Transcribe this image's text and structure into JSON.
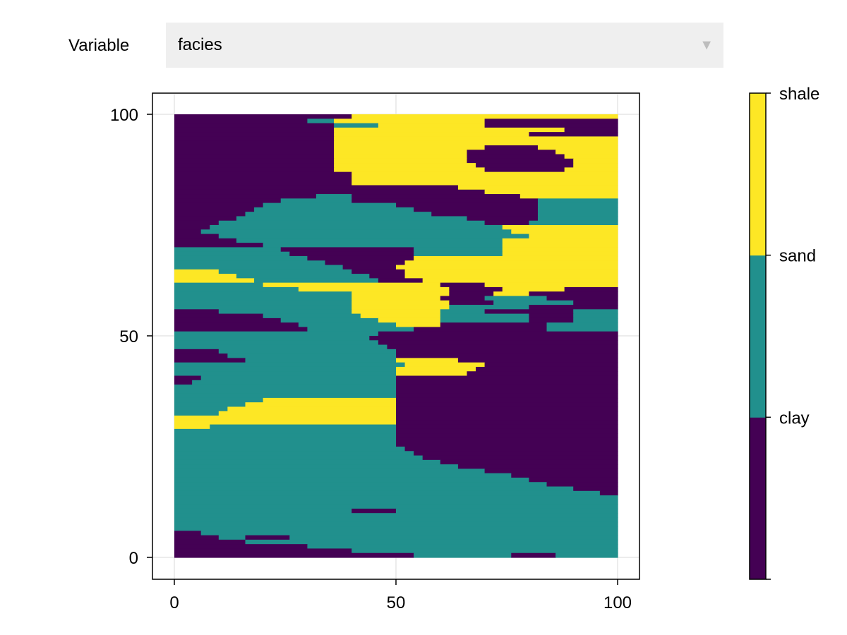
{
  "controls": {
    "variable_label": "Variable",
    "selected_variable": "facies"
  },
  "chart_data": {
    "type": "heatmap",
    "title": "",
    "xlabel": "",
    "ylabel": "",
    "xlim": [
      0,
      100
    ],
    "ylim": [
      0,
      100
    ],
    "x_ticks": [
      "0",
      "50",
      "100"
    ],
    "y_ticks": [
      "0",
      "50",
      "100"
    ],
    "grid": true,
    "categories": [
      "clay",
      "sand",
      "shale"
    ],
    "colors": [
      "#440154",
      "#21908d",
      "#fde725"
    ],
    "colorbar_labels": [
      "clay",
      "sand",
      "shale"
    ],
    "grid_size": [
      100,
      100
    ],
    "value_encoding": "rows listed from y=100 (top) to y=0 (bottom); each row is runs of [category_index, run_length] summing to 100 cells",
    "rows": [
      [
        [
          0,
          40
        ],
        [
          2,
          60
        ]
      ],
      [
        [
          0,
          30
        ],
        [
          1,
          6
        ],
        [
          2,
          34
        ],
        [
          0,
          30
        ]
      ],
      [
        [
          0,
          36
        ],
        [
          1,
          10
        ],
        [
          2,
          24
        ],
        [
          0,
          30
        ]
      ],
      [
        [
          0,
          36
        ],
        [
          2,
          52
        ],
        [
          0,
          12
        ]
      ],
      [
        [
          0,
          36
        ],
        [
          2,
          44
        ],
        [
          0,
          20
        ]
      ],
      [
        [
          0,
          36
        ],
        [
          2,
          64
        ]
      ],
      [
        [
          0,
          36
        ],
        [
          2,
          64
        ]
      ],
      [
        [
          0,
          36
        ],
        [
          2,
          34
        ],
        [
          0,
          12
        ],
        [
          2,
          18
        ]
      ],
      [
        [
          0,
          36
        ],
        [
          2,
          30
        ],
        [
          0,
          20
        ],
        [
          2,
          14
        ]
      ],
      [
        [
          0,
          36
        ],
        [
          2,
          30
        ],
        [
          0,
          22
        ],
        [
          2,
          12
        ]
      ],
      [
        [
          0,
          36
        ],
        [
          2,
          30
        ],
        [
          0,
          24
        ],
        [
          2,
          10
        ]
      ],
      [
        [
          0,
          36
        ],
        [
          2,
          32
        ],
        [
          0,
          22
        ],
        [
          2,
          10
        ]
      ],
      [
        [
          0,
          36
        ],
        [
          2,
          34
        ],
        [
          0,
          18
        ],
        [
          2,
          12
        ]
      ],
      [
        [
          0,
          40
        ],
        [
          2,
          60
        ]
      ],
      [
        [
          0,
          40
        ],
        [
          2,
          60
        ]
      ],
      [
        [
          0,
          40
        ],
        [
          2,
          60
        ]
      ],
      [
        [
          0,
          40
        ],
        [
          0,
          24
        ],
        [
          2,
          36
        ]
      ],
      [
        [
          0,
          40
        ],
        [
          0,
          30
        ],
        [
          2,
          30
        ]
      ],
      [
        [
          0,
          32
        ],
        [
          1,
          8
        ],
        [
          0,
          38
        ],
        [
          2,
          22
        ]
      ],
      [
        [
          0,
          24
        ],
        [
          1,
          16
        ],
        [
          0,
          42
        ],
        [
          1,
          18
        ]
      ],
      [
        [
          0,
          20
        ],
        [
          1,
          30
        ],
        [
          0,
          32
        ],
        [
          1,
          18
        ]
      ],
      [
        [
          0,
          18
        ],
        [
          1,
          36
        ],
        [
          0,
          28
        ],
        [
          1,
          18
        ]
      ],
      [
        [
          0,
          16
        ],
        [
          1,
          42
        ],
        [
          0,
          24
        ],
        [
          1,
          18
        ]
      ],
      [
        [
          0,
          14
        ],
        [
          1,
          52
        ],
        [
          0,
          16
        ],
        [
          1,
          18
        ]
      ],
      [
        [
          0,
          10
        ],
        [
          1,
          60
        ],
        [
          0,
          10
        ],
        [
          1,
          20
        ]
      ],
      [
        [
          0,
          8
        ],
        [
          1,
          66
        ],
        [
          2,
          26
        ]
      ],
      [
        [
          0,
          6
        ],
        [
          1,
          70
        ],
        [
          2,
          24
        ]
      ],
      [
        [
          0,
          10
        ],
        [
          1,
          70
        ],
        [
          2,
          20
        ]
      ],
      [
        [
          0,
          14
        ],
        [
          1,
          60
        ],
        [
          2,
          26
        ]
      ],
      [
        [
          0,
          20
        ],
        [
          1,
          54
        ],
        [
          2,
          26
        ]
      ],
      [
        [
          1,
          24
        ],
        [
          0,
          30
        ],
        [
          1,
          20
        ],
        [
          2,
          26
        ]
      ],
      [
        [
          1,
          26
        ],
        [
          0,
          28
        ],
        [
          1,
          20
        ],
        [
          2,
          26
        ]
      ],
      [
        [
          1,
          30
        ],
        [
          0,
          24
        ],
        [
          2,
          46
        ]
      ],
      [
        [
          1,
          34
        ],
        [
          0,
          18
        ],
        [
          2,
          48
        ]
      ],
      [
        [
          1,
          38
        ],
        [
          0,
          12
        ],
        [
          2,
          50
        ]
      ],
      [
        [
          2,
          10
        ],
        [
          1,
          30
        ],
        [
          0,
          12
        ],
        [
          2,
          48
        ]
      ],
      [
        [
          2,
          14
        ],
        [
          1,
          30
        ],
        [
          0,
          8
        ],
        [
          2,
          48
        ]
      ],
      [
        [
          2,
          18
        ],
        [
          1,
          28
        ],
        [
          0,
          10
        ],
        [
          2,
          44
        ]
      ],
      [
        [
          1,
          20
        ],
        [
          2,
          40
        ],
        [
          0,
          10
        ],
        [
          2,
          30
        ]
      ],
      [
        [
          1,
          28
        ],
        [
          2,
          34
        ],
        [
          0,
          12
        ],
        [
          2,
          14
        ],
        [
          0,
          12
        ]
      ],
      [
        [
          1,
          40
        ],
        [
          2,
          22
        ],
        [
          0,
          10
        ],
        [
          2,
          8
        ],
        [
          0,
          20
        ]
      ],
      [
        [
          1,
          40
        ],
        [
          2,
          20
        ],
        [
          0,
          10
        ],
        [
          1,
          14
        ],
        [
          0,
          16
        ]
      ],
      [
        [
          1,
          40
        ],
        [
          2,
          22
        ],
        [
          0,
          10
        ],
        [
          1,
          18
        ],
        [
          0,
          10
        ]
      ],
      [
        [
          1,
          40
        ],
        [
          2,
          22
        ],
        [
          1,
          18
        ],
        [
          0,
          20
        ]
      ],
      [
        [
          0,
          10
        ],
        [
          1,
          30
        ],
        [
          2,
          20
        ],
        [
          1,
          10
        ],
        [
          0,
          20
        ],
        [
          1,
          10
        ]
      ],
      [
        [
          0,
          20
        ],
        [
          1,
          22
        ],
        [
          2,
          18
        ],
        [
          1,
          20
        ],
        [
          0,
          10
        ],
        [
          1,
          10
        ]
      ],
      [
        [
          0,
          24
        ],
        [
          1,
          22
        ],
        [
          2,
          14
        ],
        [
          1,
          20
        ],
        [
          0,
          10
        ],
        [
          1,
          10
        ]
      ],
      [
        [
          0,
          28
        ],
        [
          1,
          22
        ],
        [
          2,
          10
        ],
        [
          0,
          24
        ],
        [
          1,
          16
        ]
      ],
      [
        [
          0,
          30
        ],
        [
          1,
          24
        ],
        [
          0,
          30
        ],
        [
          1,
          16
        ]
      ],
      [
        [
          1,
          46
        ],
        [
          0,
          54
        ]
      ],
      [
        [
          1,
          44
        ],
        [
          0,
          56
        ]
      ],
      [
        [
          1,
          46
        ],
        [
          0,
          54
        ]
      ],
      [
        [
          1,
          48
        ],
        [
          0,
          52
        ]
      ],
      [
        [
          0,
          10
        ],
        [
          1,
          40
        ],
        [
          0,
          50
        ]
      ],
      [
        [
          0,
          12
        ],
        [
          1,
          38
        ],
        [
          0,
          50
        ]
      ],
      [
        [
          0,
          16
        ],
        [
          1,
          34
        ],
        [
          2,
          14
        ],
        [
          0,
          36
        ]
      ],
      [
        [
          1,
          52
        ],
        [
          2,
          18
        ],
        [
          0,
          30
        ]
      ],
      [
        [
          1,
          50
        ],
        [
          2,
          18
        ],
        [
          0,
          32
        ]
      ],
      [
        [
          1,
          50
        ],
        [
          2,
          16
        ],
        [
          0,
          34
        ]
      ],
      [
        [
          0,
          6
        ],
        [
          1,
          44
        ],
        [
          0,
          50
        ]
      ],
      [
        [
          0,
          4
        ],
        [
          1,
          46
        ],
        [
          0,
          50
        ]
      ],
      [
        [
          1,
          50
        ],
        [
          0,
          50
        ]
      ],
      [
        [
          1,
          50
        ],
        [
          0,
          50
        ]
      ],
      [
        [
          1,
          50
        ],
        [
          0,
          50
        ]
      ],
      [
        [
          1,
          20
        ],
        [
          2,
          30
        ],
        [
          0,
          50
        ]
      ],
      [
        [
          1,
          16
        ],
        [
          2,
          34
        ],
        [
          0,
          50
        ]
      ],
      [
        [
          1,
          12
        ],
        [
          2,
          38
        ],
        [
          0,
          50
        ]
      ],
      [
        [
          1,
          10
        ],
        [
          2,
          40
        ],
        [
          0,
          50
        ]
      ],
      [
        [
          2,
          50
        ],
        [
          0,
          50
        ]
      ],
      [
        [
          2,
          50
        ],
        [
          0,
          50
        ]
      ],
      [
        [
          2,
          8
        ],
        [
          1,
          42
        ],
        [
          0,
          50
        ]
      ],
      [
        [
          1,
          50
        ],
        [
          0,
          50
        ]
      ],
      [
        [
          1,
          50
        ],
        [
          0,
          50
        ]
      ],
      [
        [
          1,
          50
        ],
        [
          0,
          50
        ]
      ],
      [
        [
          1,
          50
        ],
        [
          0,
          50
        ]
      ],
      [
        [
          1,
          52
        ],
        [
          0,
          48
        ]
      ],
      [
        [
          1,
          54
        ],
        [
          0,
          46
        ]
      ],
      [
        [
          1,
          56
        ],
        [
          0,
          44
        ]
      ],
      [
        [
          1,
          60
        ],
        [
          0,
          40
        ]
      ],
      [
        [
          1,
          64
        ],
        [
          0,
          36
        ]
      ],
      [
        [
          1,
          70
        ],
        [
          0,
          30
        ]
      ],
      [
        [
          1,
          76
        ],
        [
          0,
          24
        ]
      ],
      [
        [
          1,
          80
        ],
        [
          0,
          20
        ]
      ],
      [
        [
          1,
          84
        ],
        [
          0,
          16
        ]
      ],
      [
        [
          1,
          90
        ],
        [
          0,
          10
        ]
      ],
      [
        [
          1,
          96
        ],
        [
          0,
          4
        ]
      ],
      [
        [
          1,
          100
        ]
      ],
      [
        [
          1,
          100
        ]
      ],
      [
        [
          1,
          100
        ]
      ],
      [
        [
          1,
          40
        ],
        [
          0,
          10
        ],
        [
          1,
          50
        ]
      ],
      [
        [
          1,
          100
        ]
      ],
      [
        [
          1,
          100
        ]
      ],
      [
        [
          1,
          100
        ]
      ],
      [
        [
          1,
          100
        ]
      ],
      [
        [
          0,
          6
        ],
        [
          1,
          94
        ]
      ],
      [
        [
          0,
          10
        ],
        [
          1,
          6
        ],
        [
          0,
          10
        ],
        [
          1,
          74
        ]
      ],
      [
        [
          0,
          16
        ],
        [
          1,
          84
        ]
      ],
      [
        [
          0,
          30
        ],
        [
          1,
          70
        ]
      ],
      [
        [
          0,
          40
        ],
        [
          1,
          60
        ]
      ],
      [
        [
          0,
          54
        ],
        [
          1,
          22
        ],
        [
          0,
          10
        ],
        [
          1,
          14
        ]
      ]
    ]
  }
}
